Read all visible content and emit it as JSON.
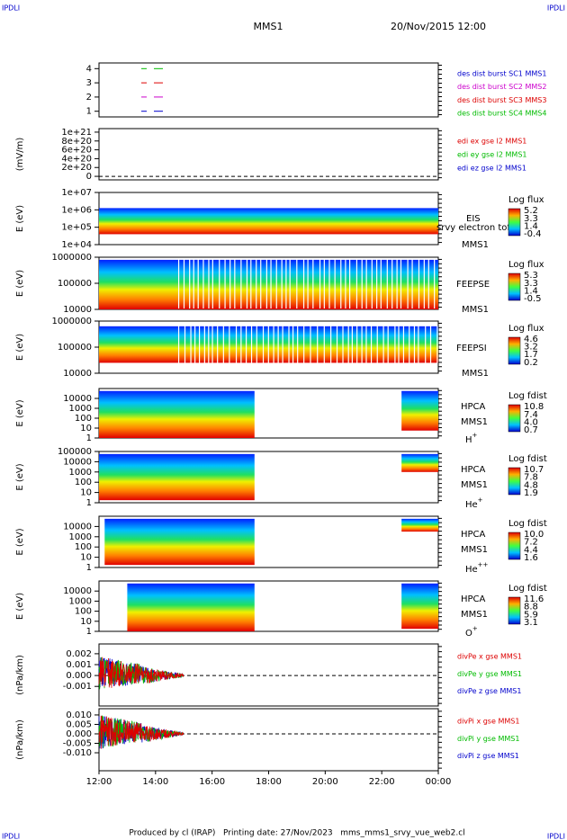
{
  "header": {
    "left": "IPDLI",
    "right": "IPDLI",
    "title": "MMS1",
    "date": "20/Nov/2015 12:00"
  },
  "footer": {
    "left": "IPDLI",
    "right": "IPDLI",
    "text": "Produced by cl (IRAP)   Printing date: 27/Nov/2023   mms_mms1_srvy_vue_web2.cl"
  },
  "chart_data": [
    {
      "type": "burst",
      "ylim": [
        0.6,
        4.4
      ],
      "yticks": [
        1,
        2,
        3,
        4
      ],
      "series": [
        {
          "name": "des dist burst SC1 MMS1",
          "color": "#0000cc"
        },
        {
          "name": "des dist burst SC2 MMS2",
          "color": "#cc00cc"
        },
        {
          "name": "des dist burst SC3 MMS3",
          "color": "#dd0000"
        },
        {
          "name": "des dist burst SC4 MMS4",
          "color": "#00bb00"
        }
      ]
    },
    {
      "type": "line",
      "ylabel": "(mV/m)",
      "ylim": [
        -8e+19,
        1.08e+21
      ],
      "yticks": [
        0,
        {
          "value": 2e+20,
          "label": "2e+20"
        },
        {
          "value": 4e+20,
          "label": "4e+20"
        },
        {
          "value": 6e+20,
          "label": "6e+20"
        },
        {
          "value": 8e+20,
          "label": "8e+20"
        },
        {
          "value": 1e+21,
          "label": "1e+21"
        }
      ],
      "series": [
        {
          "name": "edi ex gse l2 MMS1",
          "color": "#dd0000"
        },
        {
          "name": "edi ey gse l2 MMS1",
          "color": "#00bb00"
        },
        {
          "name": "edi ez gse l2 MMS1",
          "color": "#0000cc"
        }
      ]
    },
    {
      "type": "spectrogram",
      "ylabel": "E (eV)",
      "ylog": true,
      "ylim": [
        10000,
        10000000
      ],
      "yticks": [
        {
          "value": 10000,
          "label": "1e+04"
        },
        {
          "value": 100000,
          "label": "1e+05"
        },
        {
          "value": 1000000,
          "label": "1e+06"
        },
        {
          "value": 10000000,
          "label": "1e+07"
        }
      ],
      "instrument": "EIS",
      "product": "srvy electron tof",
      "spacecraft": "MMS1",
      "colorbar": {
        "title": "Log flux",
        "ticks": [
          5.2,
          3.3,
          1.4,
          -0.4
        ]
      }
    },
    {
      "type": "spectrogram",
      "ylabel": "E (eV)",
      "ylog": true,
      "ylim": [
        10000,
        1000000
      ],
      "yticks": [
        10000,
        100000,
        1000000
      ],
      "instrument": "FEEPSE",
      "spacecraft": "MMS1",
      "colorbar": {
        "title": "Log flux",
        "ticks": [
          5.3,
          3.3,
          1.4,
          -0.5
        ]
      }
    },
    {
      "type": "spectrogram",
      "ylabel": "E (eV)",
      "ylog": true,
      "ylim": [
        10000,
        1000000
      ],
      "yticks": [
        10000,
        100000,
        1000000
      ],
      "instrument": "FEEPSI",
      "spacecraft": "MMS1",
      "colorbar": {
        "title": "Log flux",
        "ticks": [
          4.6,
          3.2,
          1.7,
          0.2
        ]
      }
    },
    {
      "type": "spectrogram",
      "ylabel": "E (eV)",
      "ylog": true,
      "ylim": [
        1,
        100000
      ],
      "yticks": [
        1,
        10,
        100,
        1000,
        10000
      ],
      "instrument": "HPCA",
      "spacecraft": "MMS1",
      "species": "H",
      "charge": "+",
      "colorbar": {
        "title": "Log fdist",
        "ticks": [
          10.8,
          7.4,
          {
            "value": 4,
            "label": "4.0"
          },
          0.7
        ]
      }
    },
    {
      "type": "spectrogram",
      "ylabel": "E (eV)",
      "ylog": true,
      "ylim": [
        1,
        100000
      ],
      "yticks": [
        1,
        10,
        100,
        1000,
        10000,
        100000
      ],
      "instrument": "HPCA",
      "spacecraft": "MMS1",
      "species": "He",
      "charge": "+",
      "colorbar": {
        "title": "Log fdist",
        "ticks": [
          10.7,
          7.8,
          4.8,
          1.9
        ]
      }
    },
    {
      "type": "spectrogram",
      "ylabel": "E (eV)",
      "ylog": true,
      "ylim": [
        1,
        100000
      ],
      "yticks": [
        1,
        10,
        100,
        1000,
        10000
      ],
      "instrument": "HPCA",
      "spacecraft": "MMS1",
      "species": "He",
      "charge": "++",
      "colorbar": {
        "title": "Log fdist",
        "ticks": [
          {
            "value": 10,
            "label": "10.0"
          },
          7.2,
          4.4,
          1.6
        ]
      }
    },
    {
      "type": "spectrogram",
      "ylabel": "E (eV)",
      "ylog": true,
      "ylim": [
        1,
        100000
      ],
      "yticks": [
        1,
        10,
        100,
        1000,
        10000
      ],
      "instrument": "HPCA",
      "spacecraft": "MMS1",
      "species": "O",
      "charge": "+",
      "colorbar": {
        "title": "Log fdist",
        "ticks": [
          11.6,
          8.8,
          5.9,
          3.1
        ]
      }
    },
    {
      "type": "line",
      "ylabel": "(nPa/km)",
      "ylim": [
        -0.0028,
        0.0029
      ],
      "yticks": [
        -0.001,
        {
          "value": 0,
          "label": "0.000"
        },
        0.001,
        0.002
      ],
      "series": [
        {
          "name": "divPe x gse MMS1",
          "color": "#dd0000"
        },
        {
          "name": "divPe y gse MMS1",
          "color": "#00bb00"
        },
        {
          "name": "divPe z gse MMS1",
          "color": "#0000cc"
        }
      ]
    },
    {
      "type": "line",
      "ylabel": "(nPa/km)",
      "ylim": [
        -0.0195,
        0.0133
      ],
      "yticks": [
        {
          "value": -0.01,
          "label": "-0.010"
        },
        -0.005,
        {
          "value": 0,
          "label": "0.000"
        },
        0.005,
        {
          "value": 0.01,
          "label": "0.010"
        }
      ],
      "series": [
        {
          "name": "divPi x gse MMS1",
          "color": "#dd0000"
        },
        {
          "name": "divPi y gse MMS1",
          "color": "#00bb00"
        },
        {
          "name": "divPi z gse MMS1",
          "color": "#0000cc"
        }
      ],
      "xticks": [
        "12:00",
        "14:00",
        "16:00",
        "18:00",
        "20:00",
        "22:00",
        "00:00"
      ]
    }
  ]
}
